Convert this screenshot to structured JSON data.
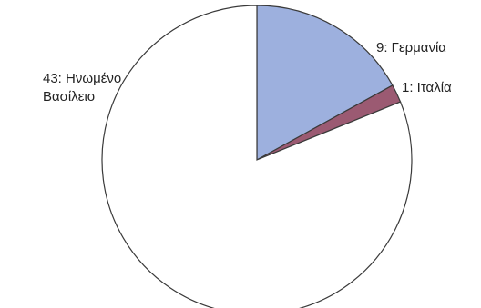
{
  "chart_data": {
    "type": "pie",
    "start_angle_deg": 0,
    "direction": "clockwise",
    "slices": [
      {
        "label": "9: Γερμανία",
        "value": 9,
        "color": "#9db0de"
      },
      {
        "label": "1: Ιταλία",
        "value": 1,
        "color": "#9b5a72"
      },
      {
        "label": "43: Ηνωμένο Βασίλειο",
        "value": 43,
        "color": "#ffffff"
      }
    ],
    "legend": "none"
  }
}
